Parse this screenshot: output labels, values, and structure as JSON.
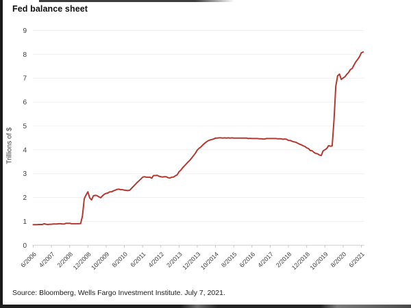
{
  "page": {
    "title": "Fed balance sheet",
    "source": "Source: Bloomberg, Wells Fargo Investment Institute. July 7, 2021."
  },
  "chart_data": {
    "type": "line",
    "title": "Fed balance sheet",
    "xlabel": "",
    "ylabel": "Trillions of $",
    "ylim": [
      0,
      9
    ],
    "yticks": [
      0,
      1,
      2,
      3,
      4,
      5,
      6,
      7,
      8,
      9
    ],
    "grid": "faint horizontal gridlines at each integer, no left/top/right spines",
    "legend": "none",
    "line_color": "#b5382e",
    "axis_color": "#d0d0d0",
    "tick_text_color": "#3c3c3c",
    "x_tick_labels_rotated_degrees": 45,
    "x_ticks": [
      {
        "label": "6/2006",
        "month": 0
      },
      {
        "label": "4/2007",
        "month": 10
      },
      {
        "label": "2/2008",
        "month": 20
      },
      {
        "label": "12/2008",
        "month": 30
      },
      {
        "label": "10/2009",
        "month": 40
      },
      {
        "label": "8/2010",
        "month": 50
      },
      {
        "label": "6/2011",
        "month": 60
      },
      {
        "label": "4/2012",
        "month": 70
      },
      {
        "label": "2/2013",
        "month": 80
      },
      {
        "label": "12/2013",
        "month": 90
      },
      {
        "label": "10/2014",
        "month": 100
      },
      {
        "label": "8/2015",
        "month": 110
      },
      {
        "label": "6/2016",
        "month": 120
      },
      {
        "label": "4/2017",
        "month": 130
      },
      {
        "label": "2/2018",
        "month": 140
      },
      {
        "label": "12/2018",
        "month": 150
      },
      {
        "label": "10/2019",
        "month": 160
      },
      {
        "label": "8/2020",
        "month": 170
      },
      {
        "label": "6/2021",
        "month": 180
      }
    ],
    "series": [
      {
        "name": "Fed balance sheet",
        "units": "trillions of $",
        "frequency": "monthly",
        "start": "6/2006",
        "end": "7/2021",
        "values": [
          0.86,
          0.86,
          0.86,
          0.87,
          0.87,
          0.87,
          0.9,
          0.88,
          0.87,
          0.88,
          0.88,
          0.89,
          0.89,
          0.89,
          0.9,
          0.9,
          0.89,
          0.89,
          0.92,
          0.92,
          0.92,
          0.9,
          0.9,
          0.9,
          0.9,
          0.9,
          0.91,
          1.21,
          1.95,
          2.11,
          2.24,
          1.98,
          1.9,
          2.07,
          2.09,
          2.08,
          2.03,
          1.99,
          2.07,
          2.14,
          2.17,
          2.19,
          2.24,
          2.24,
          2.28,
          2.31,
          2.34,
          2.35,
          2.33,
          2.33,
          2.31,
          2.3,
          2.29,
          2.31,
          2.39,
          2.47,
          2.55,
          2.63,
          2.7,
          2.77,
          2.85,
          2.87,
          2.85,
          2.85,
          2.85,
          2.81,
          2.92,
          2.92,
          2.93,
          2.89,
          2.87,
          2.86,
          2.87,
          2.87,
          2.83,
          2.82,
          2.85,
          2.86,
          2.91,
          2.95,
          3.08,
          3.15,
          3.25,
          3.33,
          3.41,
          3.49,
          3.57,
          3.66,
          3.76,
          3.86,
          3.99,
          4.06,
          4.12,
          4.2,
          4.27,
          4.33,
          4.38,
          4.41,
          4.43,
          4.45,
          4.49,
          4.49,
          4.5,
          4.5,
          4.49,
          4.5,
          4.49,
          4.5,
          4.49,
          4.5,
          4.49,
          4.49,
          4.49,
          4.49,
          4.49,
          4.49,
          4.49,
          4.49,
          4.47,
          4.48,
          4.47,
          4.47,
          4.47,
          4.47,
          4.46,
          4.46,
          4.45,
          4.45,
          4.47,
          4.47,
          4.47,
          4.47,
          4.47,
          4.47,
          4.46,
          4.46,
          4.46,
          4.44,
          4.45,
          4.44,
          4.39,
          4.39,
          4.36,
          4.33,
          4.32,
          4.28,
          4.24,
          4.21,
          4.17,
          4.14,
          4.08,
          4.05,
          3.97,
          3.96,
          3.89,
          3.85,
          3.83,
          3.78,
          3.76,
          3.95,
          4.0,
          4.05,
          4.17,
          4.15,
          4.16,
          5.25,
          6.66,
          7.1,
          7.17,
          6.95,
          7.01,
          7.06,
          7.16,
          7.24,
          7.36,
          7.41,
          7.56,
          7.69,
          7.79,
          7.9,
          8.06,
          8.1
        ]
      }
    ]
  }
}
